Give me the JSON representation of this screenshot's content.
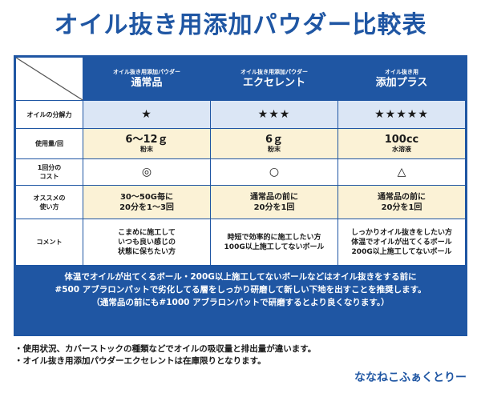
{
  "title": "オイル抜き用添加パウダー比較表",
  "columns": [
    {
      "sub": "オイル抜き用添加パウダー",
      "main": "通常品"
    },
    {
      "sub": "オイル抜き用添加パウダー",
      "main": "エクセレント"
    },
    {
      "sub": "オイル抜き用",
      "main": "添加プラス"
    }
  ],
  "rows": {
    "oil": {
      "label": "オイルの分解力",
      "values": [
        "★",
        "★★★",
        "★★★★★"
      ]
    },
    "usage": {
      "label": "使用量/回",
      "values": [
        {
          "amount": "6～12ｇ",
          "form": "粉末"
        },
        {
          "amount": "6ｇ",
          "form": "粉末"
        },
        {
          "amount": "100cc",
          "form": "水溶液"
        }
      ]
    },
    "cost": {
      "label_l1": "1回分の",
      "label_l2": "コスト",
      "values": [
        "◎",
        "○",
        "△"
      ]
    },
    "recommend": {
      "label_l1": "オススメの",
      "label_l2": "使い方",
      "values": [
        {
          "l1": "30～50G毎に",
          "l2": "20分を1～3回"
        },
        {
          "l1": "通常品の前に",
          "l2": "20分を1回"
        },
        {
          "l1": "通常品の前に",
          "l2": "20分を1回"
        }
      ]
    },
    "comment": {
      "label": "コメント",
      "values": [
        {
          "l1": "こまめに施工して",
          "l2": "いつも良い感じの",
          "l3": "状態に保ちたい方"
        },
        {
          "l1": "時短で効率的に施工したい方",
          "l2": "100G以上施工してないボール"
        },
        {
          "l1": "しっかりオイル抜きをしたい方",
          "l2": "体温でオイルが出てくるボール",
          "l3": "200G以上施工してないボール"
        }
      ]
    }
  },
  "note": {
    "l1": "体温でオイルが出てくるボール・200G以上施工してないボールなどはオイル抜きをする前に",
    "l2": "#500 アブラロンパットで劣化してる層をしっかり研磨して新しい下地を出すことを推奨します。",
    "l3": "（通常品の前にも#1000 アブラロンパットで研磨するとより良くなります。）"
  },
  "bullets": [
    "・使用状況、カバーストックの種類などでオイルの吸収量と排出量が違います。",
    "・オイル抜き用添加パウダーエクセレントは在庫限りとなります。"
  ],
  "brand": "ななねこふぁくとりー",
  "colors": {
    "primary": "#1f56a3",
    "row_blue": "#dbe6f5",
    "row_yellow": "#fbf2d6"
  }
}
